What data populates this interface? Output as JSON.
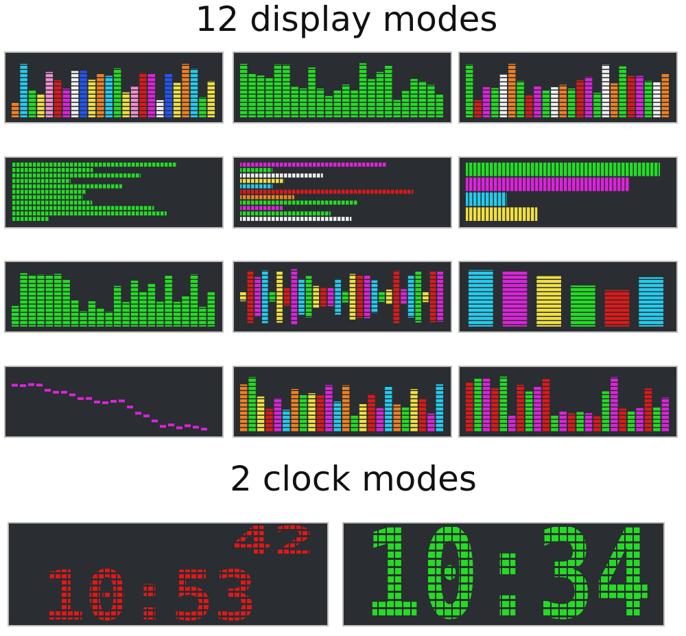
{
  "header": {
    "title": "12 display modes"
  },
  "clock_section": {
    "title": "2 clock modes"
  },
  "clocks": [
    {
      "seconds": "42",
      "time": "10:53"
    },
    {
      "time": "10:34"
    }
  ]
}
